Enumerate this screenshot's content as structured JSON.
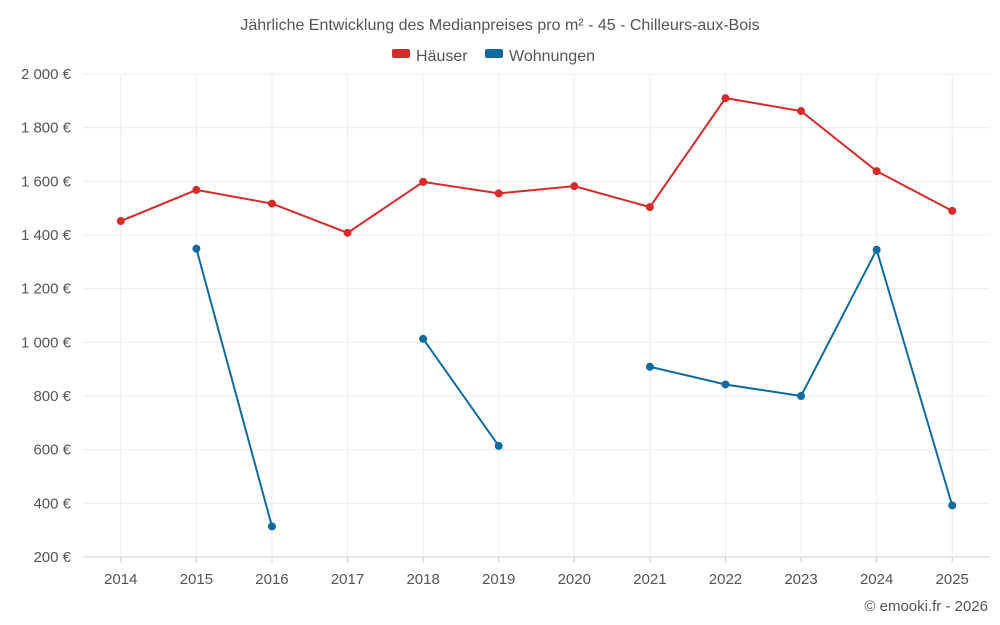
{
  "chart_data": {
    "type": "line",
    "title": "Jährliche Entwicklung des Medianpreises pro m² - 45 - Chilleurs-aux-Bois",
    "categories": [
      "2014",
      "2015",
      "2016",
      "2017",
      "2018",
      "2019",
      "2020",
      "2021",
      "2022",
      "2023",
      "2024",
      "2025"
    ],
    "ylim": [
      200,
      2000
    ],
    "yticks": [
      200,
      400,
      600,
      800,
      1000,
      1200,
      1400,
      1600,
      1800,
      2000
    ],
    "ytick_labels": [
      "200 €",
      "400 €",
      "600 €",
      "800 €",
      "1 000 €",
      "1 200 €",
      "1 400 €",
      "1 600 €",
      "1 800 €",
      "2 000 €"
    ],
    "grid": true,
    "legend_position": "top-center",
    "series": [
      {
        "name": "Häuser",
        "color": "#d52b2b",
        "values": [
          1452,
          1568,
          1517,
          1408,
          1598,
          1555,
          1582,
          1504,
          1910,
          1862,
          1638,
          1490
        ]
      },
      {
        "name": "Wohnungen",
        "color": "#0f6b9e",
        "values": [
          null,
          1349,
          314,
          null,
          1013,
          614,
          null,
          909,
          843,
          800,
          1345,
          392
        ]
      }
    ]
  },
  "copyright": "© emooki.fr - 2026"
}
